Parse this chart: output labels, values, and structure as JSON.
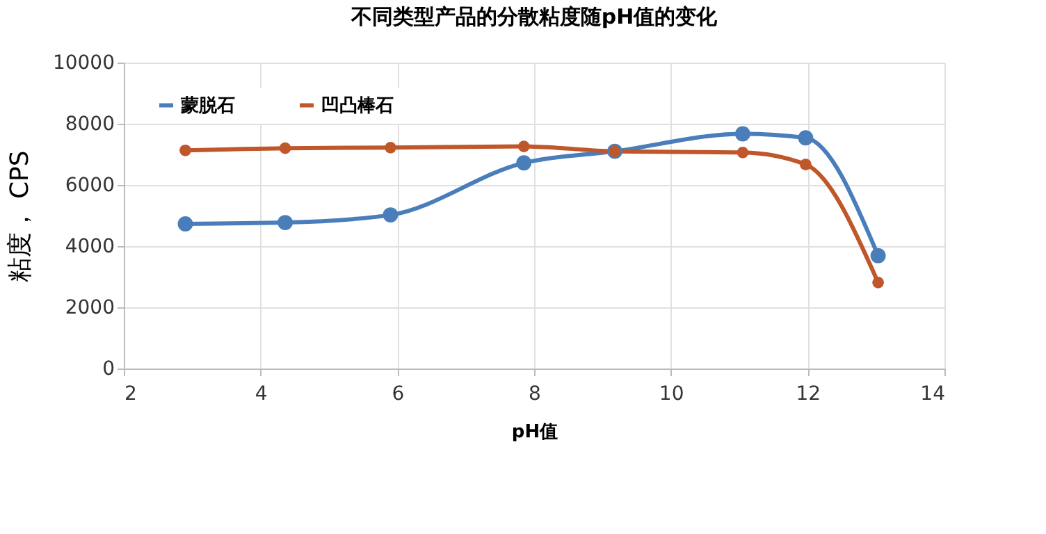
{
  "chart_data": {
    "type": "line",
    "title": "不同类型产品的分散粘度随pH值的变化",
    "xlabel": "pH值",
    "ylabel": "粘度， CPS",
    "xlim": [
      2,
      14
    ],
    "xticks": [
      2,
      4,
      6,
      8,
      10,
      12,
      14
    ],
    "ylim": [
      0,
      10000
    ],
    "yticks": [
      0,
      2000,
      4000,
      6000,
      8000,
      10000
    ],
    "grid": true,
    "legend": "top left",
    "marker": "circle",
    "line_style": "solid",
    "series": [
      {
        "name": "蒙脱石",
        "color": "#4a7ebb",
        "x": [
          2.9,
          4.36,
          5.9,
          7.85,
          9.18,
          11.05,
          11.97,
          13.03
        ],
        "values": [
          4730,
          4770,
          5020,
          6720,
          7100,
          7670,
          7540,
          3690
        ]
      },
      {
        "name": "凹凸棒石",
        "color": "#c0572b",
        "x": [
          2.9,
          4.36,
          5.9,
          7.85,
          9.18,
          11.05,
          11.97,
          13.03
        ],
        "values": [
          7130,
          7200,
          7220,
          7260,
          7100,
          7060,
          6670,
          2810
        ]
      }
    ]
  }
}
